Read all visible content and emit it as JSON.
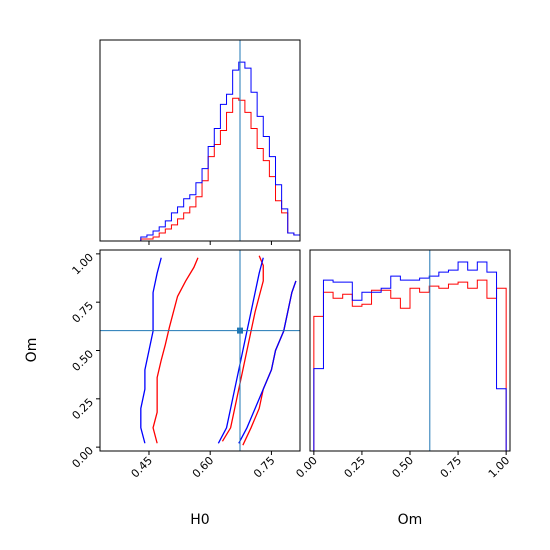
{
  "colors": {
    "series_red": "#ff0000",
    "series_blue": "#0000ff",
    "truth": "#1f77b4",
    "axis": "#000000"
  },
  "chart_data": [
    {
      "type": "histogram",
      "panel": "top-left",
      "param": "H0",
      "xlim": [
        0.33,
        0.82
      ],
      "truth": 0.673,
      "bins": [
        0.34,
        0.355,
        0.37,
        0.385,
        0.4,
        0.415,
        0.43,
        0.445,
        0.46,
        0.475,
        0.49,
        0.505,
        0.52,
        0.535,
        0.55,
        0.565,
        0.58,
        0.595,
        0.61,
        0.625,
        0.64,
        0.655,
        0.67,
        0.685,
        0.7,
        0.715,
        0.73,
        0.745,
        0.76,
        0.775,
        0.79,
        0.805,
        0.82
      ],
      "series": [
        {
          "name": "",
          "color": "red",
          "values": [
            0,
            0,
            0,
            0,
            0,
            0,
            0.01,
            0.01,
            0.02,
            0.04,
            0.06,
            0.08,
            0.11,
            0.14,
            0.17,
            0.22,
            0.3,
            0.42,
            0.48,
            0.55,
            0.64,
            0.71,
            0.7,
            0.64,
            0.56,
            0.46,
            0.4,
            0.32,
            0.2,
            0.14,
            0.04,
            0.03
          ]
        },
        {
          "name": "",
          "color": "blue",
          "values": [
            0,
            0,
            0,
            0,
            0,
            0,
            0.02,
            0.03,
            0.05,
            0.07,
            0.1,
            0.14,
            0.17,
            0.21,
            0.23,
            0.29,
            0.36,
            0.47,
            0.56,
            0.68,
            0.73,
            0.85,
            0.89,
            0.86,
            0.74,
            0.62,
            0.52,
            0.42,
            0.28,
            0.16,
            0.04,
            0.03
          ]
        }
      ]
    },
    {
      "type": "contour",
      "panel": "bottom-left",
      "x": "H0",
      "y": "Om",
      "xlim": [
        0.33,
        0.82
      ],
      "ylim": [
        -0.02,
        1.02
      ],
      "truth": {
        "x": 0.673,
        "y": 0.603
      },
      "xticks": [
        "0.45",
        "0.60",
        "0.75"
      ],
      "yticks": [
        "0.00",
        "0.25",
        "0.50",
        "0.75",
        "1.00"
      ],
      "xlabel": "H0",
      "ylabel": "Om",
      "contours": [
        {
          "color": "red",
          "points": [
            [
              0.47,
              0.02
            ],
            [
              0.46,
              0.1
            ],
            [
              0.47,
              0.18
            ],
            [
              0.47,
              0.28
            ],
            [
              0.47,
              0.36
            ],
            [
              0.48,
              0.45
            ],
            [
              0.49,
              0.53
            ],
            [
              0.5,
              0.62
            ],
            [
              0.51,
              0.7
            ],
            [
              0.52,
              0.78
            ],
            [
              0.54,
              0.86
            ],
            [
              0.56,
              0.93
            ],
            [
              0.57,
              0.98
            ]
          ]
        },
        {
          "color": "red",
          "points": [
            [
              0.63,
              0.03
            ],
            [
              0.65,
              0.1
            ],
            [
              0.66,
              0.2
            ],
            [
              0.67,
              0.3
            ],
            [
              0.68,
              0.4
            ],
            [
              0.69,
              0.5
            ],
            [
              0.7,
              0.6
            ],
            [
              0.71,
              0.7
            ],
            [
              0.72,
              0.78
            ],
            [
              0.73,
              0.86
            ],
            [
              0.73,
              0.94
            ],
            [
              0.72,
              0.99
            ]
          ]
        },
        {
          "color": "red",
          "points": [
            [
              0.68,
              0.01
            ],
            [
              0.7,
              0.1
            ],
            [
              0.72,
              0.2
            ],
            [
              0.73,
              0.3
            ],
            [
              0.75,
              0.4
            ],
            [
              0.76,
              0.5
            ],
            [
              0.78,
              0.6
            ],
            [
              0.79,
              0.7
            ],
            [
              0.8,
              0.8
            ],
            [
              0.81,
              0.86
            ]
          ]
        },
        {
          "color": "blue",
          "points": [
            [
              0.44,
              0.02
            ],
            [
              0.43,
              0.1
            ],
            [
              0.43,
              0.2
            ],
            [
              0.44,
              0.3
            ],
            [
              0.44,
              0.4
            ],
            [
              0.45,
              0.5
            ],
            [
              0.46,
              0.6
            ],
            [
              0.46,
              0.7
            ],
            [
              0.46,
              0.8
            ],
            [
              0.47,
              0.9
            ],
            [
              0.48,
              0.98
            ]
          ]
        },
        {
          "color": "blue",
          "points": [
            [
              0.62,
              0.02
            ],
            [
              0.64,
              0.1
            ],
            [
              0.65,
              0.2
            ],
            [
              0.66,
              0.3
            ],
            [
              0.67,
              0.4
            ],
            [
              0.68,
              0.5
            ],
            [
              0.69,
              0.6
            ],
            [
              0.7,
              0.7
            ],
            [
              0.71,
              0.8
            ],
            [
              0.72,
              0.9
            ],
            [
              0.73,
              0.98
            ]
          ]
        },
        {
          "color": "blue",
          "points": [
            [
              0.67,
              0.02
            ],
            [
              0.69,
              0.1
            ],
            [
              0.71,
              0.2
            ],
            [
              0.73,
              0.3
            ],
            [
              0.75,
              0.4
            ],
            [
              0.76,
              0.5
            ],
            [
              0.78,
              0.6
            ],
            [
              0.79,
              0.7
            ],
            [
              0.8,
              0.8
            ],
            [
              0.81,
              0.86
            ]
          ]
        }
      ]
    },
    {
      "type": "histogram",
      "panel": "bottom-right",
      "param": "Om",
      "xlim": [
        -0.02,
        1.02
      ],
      "truth": 0.603,
      "xticks": [
        "0.00",
        "0.25",
        "0.50",
        "0.75",
        "1.00"
      ],
      "xlabel": "Om",
      "bins": [
        0.0,
        0.05,
        0.1,
        0.15,
        0.2,
        0.25,
        0.3,
        0.35,
        0.4,
        0.45,
        0.5,
        0.55,
        0.6,
        0.65,
        0.7,
        0.75,
        0.8,
        0.85,
        0.9,
        0.95,
        1.0
      ],
      "series": [
        {
          "name": "",
          "color": "red",
          "values": [
            0.67,
            0.79,
            0.76,
            0.78,
            0.72,
            0.73,
            0.8,
            0.8,
            0.76,
            0.71,
            0.81,
            0.79,
            0.82,
            0.81,
            0.83,
            0.84,
            0.81,
            0.85,
            0.76,
            0.81
          ]
        },
        {
          "name": "",
          "color": "blue",
          "values": [
            0.41,
            0.85,
            0.84,
            0.84,
            0.75,
            0.79,
            0.79,
            0.81,
            0.87,
            0.85,
            0.85,
            0.86,
            0.87,
            0.89,
            0.9,
            0.94,
            0.9,
            0.94,
            0.89,
            0.31
          ]
        }
      ]
    }
  ]
}
